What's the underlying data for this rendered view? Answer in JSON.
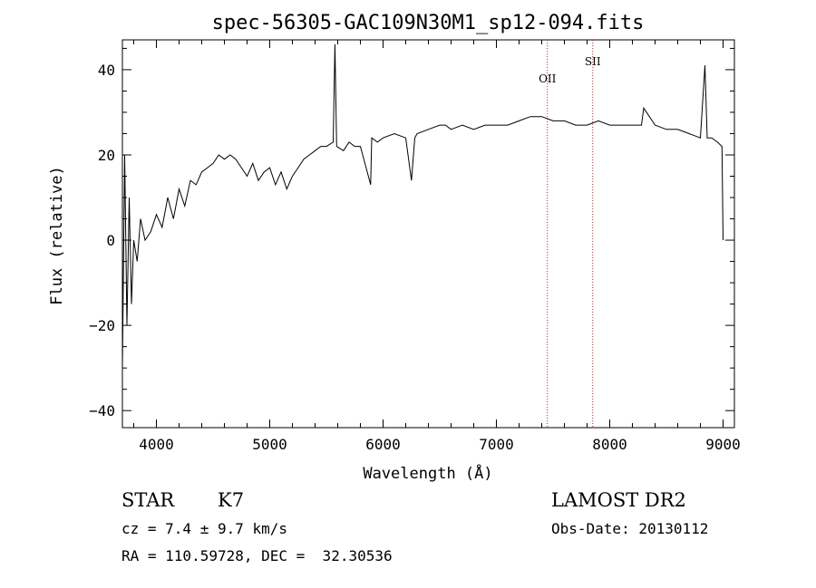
{
  "chart_data": {
    "type": "line",
    "title": "spec-56305-GAC109N30M1_sp12-094.fits",
    "xlabel": "Wavelength (Å)",
    "ylabel": "Flux (relative)",
    "xlim": [
      3700,
      9100
    ],
    "ylim": [
      -44,
      47
    ],
    "xticks": [
      4000,
      5000,
      6000,
      7000,
      8000,
      9000
    ],
    "yticks": [
      -40,
      -20,
      0,
      20,
      40
    ],
    "xtick_labels": [
      "4000",
      "5000",
      "6000",
      "7000",
      "8000",
      "9000"
    ],
    "ytick_labels": [
      "−40",
      "−20",
      "0",
      "20",
      "40"
    ],
    "grid": false,
    "line_color": "#000000",
    "marker_color": "#b22222",
    "lines": [
      {
        "label": "OII",
        "x": 7450,
        "label_y": 37
      },
      {
        "label": "SII",
        "x": 7850,
        "label_y": 41
      }
    ],
    "series": [
      {
        "x": [
          3700,
          3720,
          3740,
          3760,
          3780,
          3800,
          3830,
          3860,
          3900,
          3950,
          4000,
          4050,
          4100,
          4150,
          4200,
          4250,
          4300,
          4350,
          4400,
          4450,
          4500,
          4550,
          4600,
          4650,
          4700,
          4750,
          4800,
          4850,
          4900,
          4950,
          5000,
          5050,
          5100,
          5150,
          5200,
          5250,
          5300,
          5350,
          5400,
          5450,
          5500,
          5560,
          5575,
          5590,
          5650,
          5700,
          5750,
          5800,
          5850,
          5890,
          5900,
          5950,
          6000,
          6100,
          6200,
          6250,
          6280,
          6300,
          6400,
          6500,
          6550,
          6600,
          6700,
          6800,
          6900,
          7000,
          7100,
          7200,
          7300,
          7400,
          7500,
          7600,
          7700,
          7800,
          7900,
          8000,
          8100,
          8200,
          8280,
          8300,
          8400,
          8500,
          8600,
          8700,
          8800,
          8840,
          8860,
          8900,
          8950,
          8990,
          9000
        ],
        "y": [
          -30,
          20,
          -20,
          10,
          -15,
          0,
          -5,
          5,
          0,
          2,
          6,
          3,
          10,
          5,
          12,
          8,
          14,
          13,
          16,
          17,
          18,
          20,
          19,
          20,
          19,
          17,
          15,
          18,
          14,
          16,
          17,
          13,
          16,
          12,
          15,
          17,
          19,
          20,
          21,
          22,
          22,
          23,
          46,
          22,
          21,
          23,
          22,
          22,
          17,
          13,
          24,
          23,
          24,
          25,
          24,
          14,
          24,
          25,
          26,
          27,
          27,
          26,
          27,
          26,
          27,
          27,
          27,
          28,
          29,
          29,
          28,
          28,
          27,
          27,
          28,
          27,
          27,
          27,
          27,
          31,
          27,
          26,
          26,
          25,
          24,
          41,
          24,
          24,
          23,
          22,
          0
        ]
      }
    ]
  },
  "footer": {
    "class_label": "STAR",
    "subclass": "K7",
    "cz": "cz = 7.4 ± 9.7 km/s",
    "radec": "RA = 110.59728, DEC =  32.30536",
    "survey": "LAMOST DR2",
    "obs_date": "Obs-Date: 20130112"
  }
}
